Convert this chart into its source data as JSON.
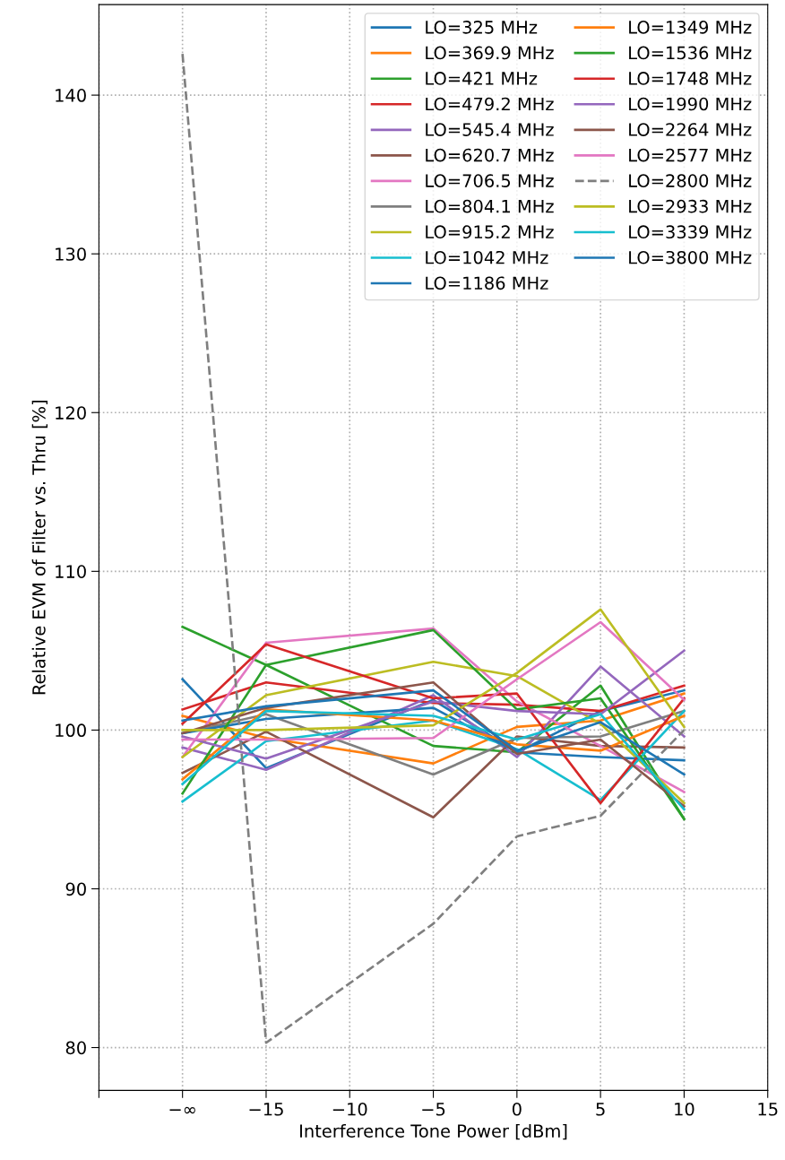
{
  "chart_data": {
    "type": "line",
    "xlabel": "Interference Tone Power [dBm]",
    "ylabel": "Relative EVM of Filter vs. Thru [%]",
    "x": [
      -20,
      -15,
      -5,
      0,
      5,
      10
    ],
    "xlim": [
      -25,
      15
    ],
    "xticks": [
      {
        "value": -25,
        "label": null
      },
      {
        "value": -20,
        "label": "−∞"
      },
      {
        "value": -15,
        "label": "−15"
      },
      {
        "value": -10,
        "label": "−10"
      },
      {
        "value": -5,
        "label": "−5"
      },
      0,
      5,
      10,
      15
    ],
    "ylim": [
      77.3,
      145.7
    ],
    "yticks": [
      80,
      90,
      100,
      110,
      120,
      130,
      140
    ],
    "grid": true,
    "legend": "top right",
    "line_style": "solid",
    "marker": "none",
    "series": [
      {
        "name": "LO=325 MHz",
        "color": "#1f77b4",
        "values": [
          103.2,
          97.6,
          101.9,
          98.6,
          101.2,
          102.5
        ]
      },
      {
        "name": "LO=369.9 MHz",
        "color": "#ff7f0e",
        "values": [
          100.9,
          99.5,
          97.9,
          100.2,
          100.6,
          102.3
        ]
      },
      {
        "name": "LO=421 MHz",
        "color": "#2ca02c",
        "values": [
          106.5,
          104.1,
          99.0,
          98.6,
          102.8,
          94.4
        ]
      },
      {
        "name": "LO=479.2 MHz",
        "color": "#d62728",
        "values": [
          101.3,
          103.0,
          101.7,
          101.6,
          101.2,
          102.8
        ]
      },
      {
        "name": "LO=545.4 MHz",
        "color": "#9467bd",
        "values": [
          98.9,
          97.5,
          102.2,
          98.3,
          104.0,
          99.6
        ]
      },
      {
        "name": "LO=620.7 MHz",
        "color": "#8c564b",
        "values": [
          97.3,
          99.9,
          94.5,
          99.6,
          99.0,
          98.9
        ]
      },
      {
        "name": "LO=706.5 MHz",
        "color": "#e377c2",
        "values": [
          98.3,
          105.5,
          106.4,
          101.8,
          99.0,
          96.1
        ]
      },
      {
        "name": "LO=804.1 MHz",
        "color": "#7f7f7f",
        "values": [
          99.8,
          101.0,
          97.2,
          99.5,
          99.6,
          101.2
        ]
      },
      {
        "name": "LO=915.2 MHz",
        "color": "#bcbd22",
        "values": [
          98.3,
          102.2,
          104.3,
          103.4,
          100.4,
          95.4
        ]
      },
      {
        "name": "LO=1042 MHz",
        "color": "#17becf",
        "values": [
          95.5,
          99.3,
          100.6,
          98.8,
          95.6,
          101.2
        ]
      },
      {
        "name": "LO=1186 MHz",
        "color": "#1f77b4",
        "values": [
          99.8,
          100.7,
          101.4,
          98.6,
          98.3,
          98.1
        ]
      },
      {
        "name": "LO=1349 MHz",
        "color": "#ff7f0e",
        "values": [
          96.9,
          101.3,
          100.6,
          99.1,
          98.7,
          100.9
        ]
      },
      {
        "name": "LO=1536 MHz",
        "color": "#2ca02c",
        "values": [
          96.0,
          104.1,
          106.3,
          101.3,
          102.0,
          94.4
        ]
      },
      {
        "name": "LO=1748 MHz",
        "color": "#d62728",
        "values": [
          100.4,
          105.4,
          102.0,
          102.3,
          95.4,
          102.0
        ]
      },
      {
        "name": "LO=1990 MHz",
        "color": "#9467bd",
        "values": [
          99.6,
          98.2,
          101.8,
          101.2,
          101.0,
          105.0
        ]
      },
      {
        "name": "LO=2264 MHz",
        "color": "#8c564b",
        "values": [
          99.8,
          101.4,
          103.0,
          98.5,
          99.4,
          95.2
        ]
      },
      {
        "name": "LO=2577 MHz",
        "color": "#e377c2",
        "values": [
          99.4,
          99.4,
          99.5,
          103.2,
          106.8,
          101.9
        ]
      },
      {
        "name": "LO=2800 MHz",
        "color": "#7f7f7f",
        "line_style": "dashed",
        "values": [
          142.6,
          80.3,
          87.8,
          93.3,
          94.6,
          100.0
        ]
      },
      {
        "name": "LO=2933 MHz",
        "color": "#bcbd22",
        "values": [
          100.0,
          100.0,
          100.3,
          103.6,
          107.6,
          100.2
        ]
      },
      {
        "name": "LO=3339 MHz",
        "color": "#17becf",
        "values": [
          96.6,
          101.2,
          100.9,
          99.4,
          101.0,
          95.0
        ]
      },
      {
        "name": "LO=3800 MHz",
        "color": "#1f77b4",
        "values": [
          100.6,
          101.5,
          102.5,
          98.7,
          100.5,
          97.2
        ]
      }
    ]
  }
}
